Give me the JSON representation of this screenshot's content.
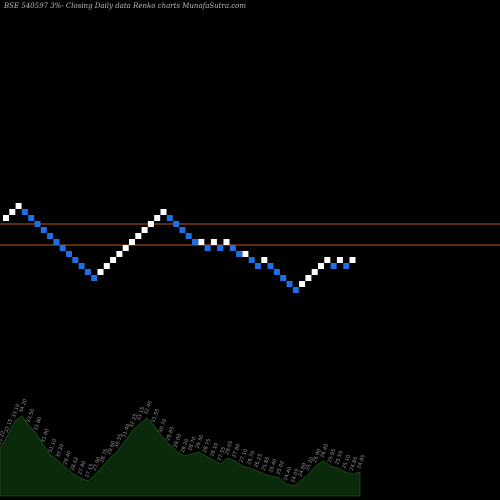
{
  "header": {
    "title": "BSE 540597 3%-  Closing Daily data  Renko  charts MunafaSutra.com"
  },
  "colors": {
    "background": "#000000",
    "up_brick": "#ffffff",
    "down_brick": "#1e6ee8",
    "reference_line": "#b85c1a",
    "volume_fill": "#0b2a0b",
    "volume_outline": "#1b4d1b"
  },
  "chart_data": [
    {
      "type": "renko",
      "title": "BSE 540597 3%-  Closing Daily data  Renko  charts MunafaSutra.com",
      "brick_size_percent": 3,
      "bricks": [
        {
          "dir": "up",
          "level": 3
        },
        {
          "dir": "up",
          "level": 4
        },
        {
          "dir": "up",
          "level": 5
        },
        {
          "dir": "down",
          "level": 4
        },
        {
          "dir": "down",
          "level": 3
        },
        {
          "dir": "down",
          "level": 2
        },
        {
          "dir": "down",
          "level": 1
        },
        {
          "dir": "down",
          "level": 0
        },
        {
          "dir": "down",
          "level": -1
        },
        {
          "dir": "down",
          "level": -2
        },
        {
          "dir": "down",
          "level": -3
        },
        {
          "dir": "down",
          "level": -4
        },
        {
          "dir": "down",
          "level": -5
        },
        {
          "dir": "down",
          "level": -6
        },
        {
          "dir": "down",
          "level": -7
        },
        {
          "dir": "up",
          "level": -6
        },
        {
          "dir": "up",
          "level": -5
        },
        {
          "dir": "up",
          "level": -4
        },
        {
          "dir": "up",
          "level": -3
        },
        {
          "dir": "up",
          "level": -2
        },
        {
          "dir": "up",
          "level": -1
        },
        {
          "dir": "up",
          "level": 0
        },
        {
          "dir": "up",
          "level": 1
        },
        {
          "dir": "up",
          "level": 2
        },
        {
          "dir": "up",
          "level": 3
        },
        {
          "dir": "up",
          "level": 4
        },
        {
          "dir": "down",
          "level": 3
        },
        {
          "dir": "down",
          "level": 2
        },
        {
          "dir": "down",
          "level": 1
        },
        {
          "dir": "down",
          "level": 0
        },
        {
          "dir": "down",
          "level": -1
        },
        {
          "dir": "up",
          "level": -1
        },
        {
          "dir": "down",
          "level": -2
        },
        {
          "dir": "up",
          "level": -1
        },
        {
          "dir": "down",
          "level": -2
        },
        {
          "dir": "up",
          "level": -1
        },
        {
          "dir": "down",
          "level": -2
        },
        {
          "dir": "down",
          "level": -3
        },
        {
          "dir": "up",
          "level": -3
        },
        {
          "dir": "down",
          "level": -4
        },
        {
          "dir": "down",
          "level": -5
        },
        {
          "dir": "up",
          "level": -4
        },
        {
          "dir": "down",
          "level": -5
        },
        {
          "dir": "down",
          "level": -6
        },
        {
          "dir": "down",
          "level": -7
        },
        {
          "dir": "down",
          "level": -8
        },
        {
          "dir": "down",
          "level": -9
        },
        {
          "dir": "up",
          "level": -8
        },
        {
          "dir": "up",
          "level": -7
        },
        {
          "dir": "up",
          "level": -6
        },
        {
          "dir": "up",
          "level": -5
        },
        {
          "dir": "up",
          "level": -4
        },
        {
          "dir": "down",
          "level": -5
        },
        {
          "dir": "up",
          "level": -4
        },
        {
          "dir": "down",
          "level": -5
        },
        {
          "dir": "up",
          "level": -4
        }
      ],
      "reference_lines": [
        2,
        -1.5
      ]
    },
    {
      "type": "area",
      "values": [
        48,
        60,
        75,
        80,
        70,
        62,
        50,
        40,
        35,
        28,
        22,
        18,
        15,
        22,
        30,
        38,
        45,
        55,
        65,
        72,
        78,
        70,
        60,
        52,
        45,
        40,
        42,
        44,
        40,
        36,
        32,
        38,
        35,
        30,
        28,
        25,
        22,
        20,
        18,
        12,
        10,
        16,
        22,
        30,
        35,
        30,
        28,
        24,
        22,
        24
      ],
      "value_labels": [
        "31.22",
        "32.15",
        "33.10",
        "34.20",
        "33.50",
        "32.80",
        "31.90",
        "31.10",
        "30.20",
        "29.40",
        "28.62",
        "27.80",
        "27.15",
        "27.90",
        "28.75",
        "29.60",
        "30.55",
        "31.40",
        "32.25",
        "33.15",
        "32.40",
        "31.55",
        "30.70",
        "29.85",
        "29.00",
        "28.20",
        "28.70",
        "29.30",
        "28.75",
        "28.10",
        "27.55",
        "28.05",
        "27.60",
        "27.10",
        "26.70",
        "26.25",
        "25.85",
        "25.40",
        "25.00",
        "24.40",
        "24.05",
        "24.60",
        "25.20",
        "25.90",
        "26.40",
        "25.95",
        "25.55",
        "25.10",
        "24.85",
        "24.95"
      ]
    }
  ]
}
